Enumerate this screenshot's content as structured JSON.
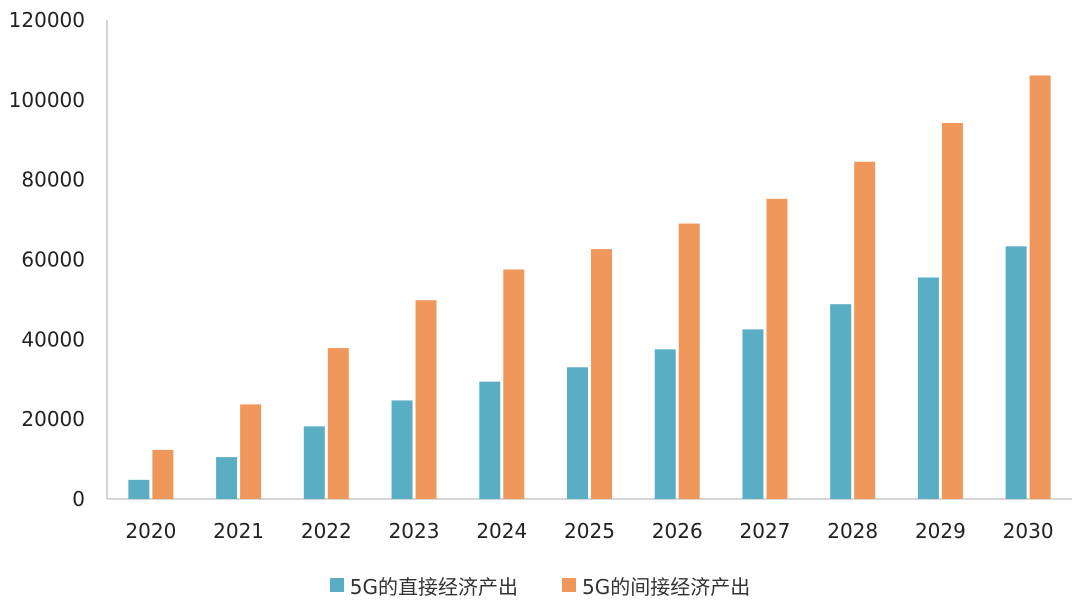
{
  "chart_data": {
    "type": "bar",
    "categories": [
      "2020",
      "2021",
      "2022",
      "2023",
      "2024",
      "2025",
      "2026",
      "2027",
      "2028",
      "2029",
      "2030"
    ],
    "series": [
      {
        "name": "5G的直接经济产出",
        "color": "#5aaec4",
        "values": [
          4800,
          10500,
          18200,
          24700,
          29400,
          33000,
          37500,
          42500,
          48800,
          55500,
          63300
        ]
      },
      {
        "name": "5G的间接经济产出",
        "color": "#f0975c",
        "values": [
          12300,
          23700,
          37800,
          49800,
          57500,
          62600,
          69000,
          75200,
          84500,
          94200,
          106100
        ]
      }
    ],
    "yticks": [
      "0",
      "20000",
      "40000",
      "60000",
      "80000",
      "100000",
      "120000"
    ],
    "ylim": [
      0,
      120000
    ],
    "grid": false,
    "legend_position": "bottom"
  }
}
